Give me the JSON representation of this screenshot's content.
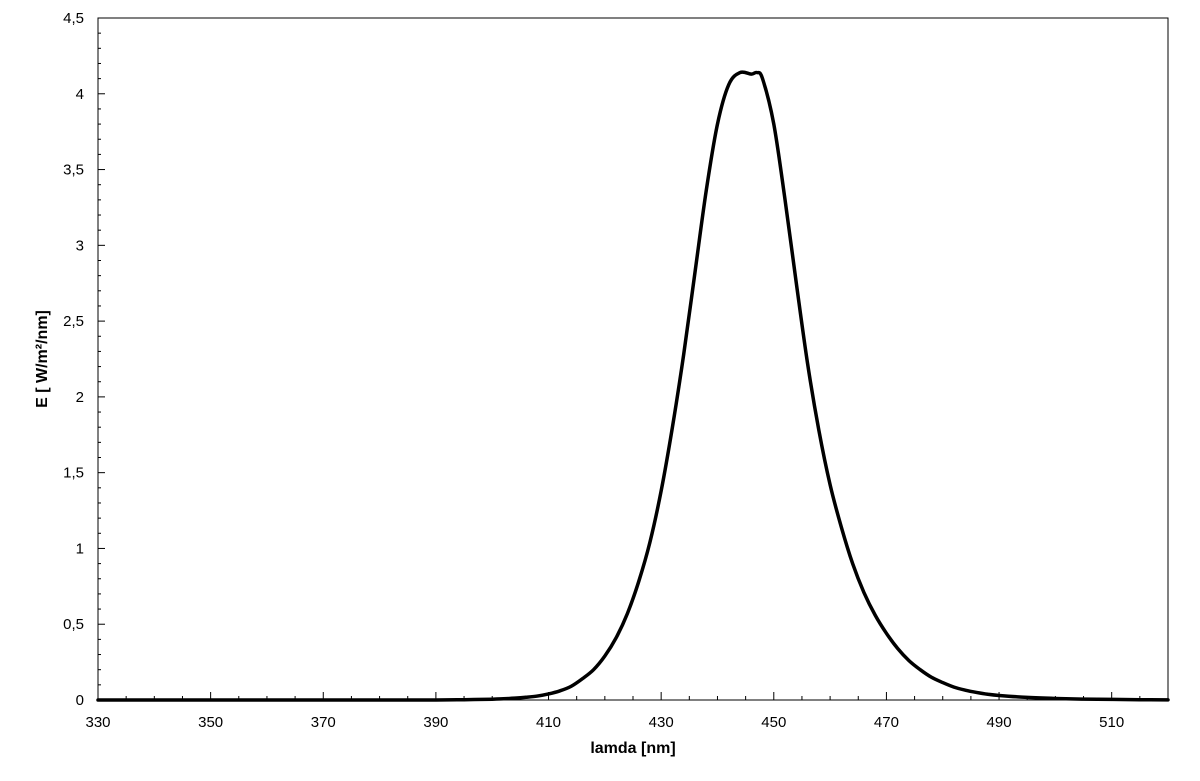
{
  "chart_data": {
    "type": "line",
    "title": "",
    "xlabel": "lamda [nm]",
    "ylabel": "E [ W/m²/nm]",
    "xlim": [
      330,
      520
    ],
    "ylim": [
      0,
      4.5
    ],
    "x_ticks": [
      330,
      350,
      370,
      390,
      410,
      430,
      450,
      470,
      490,
      510
    ],
    "x_tick_labels": [
      "330",
      "350",
      "370",
      "390",
      "410",
      "430",
      "450",
      "470",
      "490",
      "510"
    ],
    "y_ticks": [
      0,
      0.5,
      1,
      1.5,
      2,
      2.5,
      3,
      3.5,
      4,
      4.5
    ],
    "y_tick_labels": [
      "0",
      "0,5",
      "1",
      "1,5",
      "2",
      "2,5",
      "3",
      "3,5",
      "4",
      "4,5"
    ],
    "grid": false,
    "legend": "none",
    "colors": {
      "line": "#000000",
      "frame": "#000000",
      "background": "#ffffff"
    },
    "series": [
      {
        "x": [
          330,
          340,
          350,
          360,
          370,
          380,
          390,
          395,
          400,
          402,
          404,
          406,
          408,
          410,
          412,
          414,
          416,
          418,
          420,
          422,
          424,
          426,
          428,
          430,
          432,
          434,
          436,
          438,
          440,
          442,
          444,
          446,
          447,
          448,
          450,
          452,
          454,
          456,
          458,
          460,
          462,
          464,
          466,
          468,
          470,
          472,
          474,
          476,
          478,
          480,
          482,
          484,
          486,
          488,
          490,
          495,
          500,
          505,
          510,
          515,
          520
        ],
        "y": [
          0,
          0,
          0,
          0,
          0,
          0,
          0,
          0.002,
          0.005,
          0.008,
          0.012,
          0.018,
          0.026,
          0.04,
          0.06,
          0.09,
          0.14,
          0.2,
          0.29,
          0.41,
          0.57,
          0.78,
          1.04,
          1.38,
          1.8,
          2.28,
          2.82,
          3.36,
          3.8,
          4.06,
          4.14,
          4.13,
          4.14,
          4.1,
          3.8,
          3.3,
          2.75,
          2.22,
          1.78,
          1.42,
          1.14,
          0.9,
          0.71,
          0.56,
          0.44,
          0.34,
          0.26,
          0.2,
          0.15,
          0.115,
          0.085,
          0.065,
          0.05,
          0.038,
          0.03,
          0.017,
          0.01,
          0.006,
          0.004,
          0.002,
          0.001
        ]
      }
    ]
  }
}
